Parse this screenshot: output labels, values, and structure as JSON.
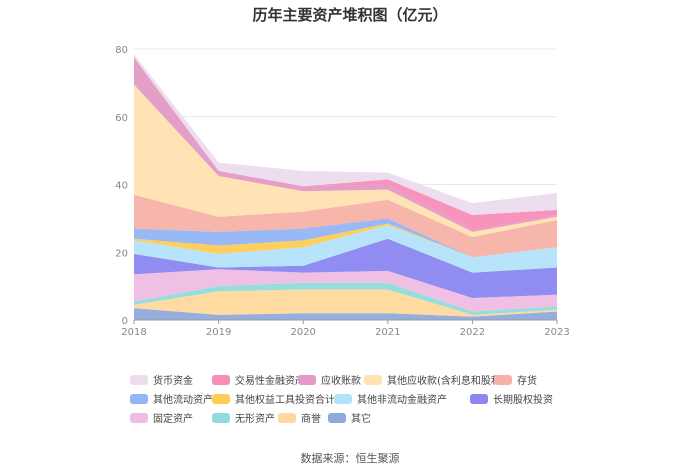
{
  "chart_data": {
    "type": "area",
    "stacked": true,
    "title": "历年主要资产堆积图（亿元）",
    "source": "数据来源：恒生聚源",
    "categories": [
      "2018",
      "2019",
      "2020",
      "2021",
      "2022",
      "2023"
    ],
    "ylim": [
      0,
      80
    ],
    "yticks": [
      0,
      20,
      40,
      60,
      80
    ],
    "grid": true,
    "series": [
      {
        "name": "其它",
        "color": "#8faadc",
        "values": [
          3.5,
          1.5,
          2.0,
          2.0,
          1.0,
          2.5
        ]
      },
      {
        "name": "商誉",
        "color": "#ffd89c",
        "values": [
          1.0,
          7.0,
          7.0,
          7.0,
          0.5,
          0.5
        ]
      },
      {
        "name": "无形资产",
        "color": "#8fdcdb",
        "values": [
          1.0,
          1.5,
          2.0,
          2.0,
          1.0,
          1.0
        ]
      },
      {
        "name": "固定资产",
        "color": "#eebde3",
        "values": [
          8.0,
          5.0,
          3.0,
          3.5,
          4.0,
          3.5
        ]
      },
      {
        "name": "长期股权投资",
        "color": "#8b86f0",
        "values": [
          6.0,
          0.5,
          2.0,
          9.5,
          7.5,
          8.0
        ]
      },
      {
        "name": "其他非流动金融资产",
        "color": "#b3e3fb",
        "values": [
          4.0,
          4.0,
          5.5,
          4.0,
          4.5,
          6.0
        ]
      },
      {
        "name": "其他权益工具投资合计",
        "color": "#ffcc55",
        "values": [
          0.5,
          2.5,
          2.0,
          0.5,
          0.0,
          0.0
        ]
      },
      {
        "name": "其他流动资产",
        "color": "#93b4f5",
        "values": [
          3.0,
          4.0,
          3.5,
          1.5,
          0.0,
          0.0
        ]
      },
      {
        "name": "存货",
        "color": "#f7b2a8",
        "values": [
          10.0,
          4.5,
          5.0,
          5.5,
          6.0,
          8.0
        ]
      },
      {
        "name": "其他应收款(含利息和股利)",
        "color": "#ffe2b0",
        "values": [
          32.5,
          12.0,
          6.0,
          3.0,
          1.5,
          1.0
        ]
      },
      {
        "name": "应收账款",
        "color": "#e39ac6",
        "values": [
          8.0,
          1.5,
          1.5,
          1.5,
          0.5,
          0.5
        ]
      },
      {
        "name": "交易性金融资产",
        "color": "#f88db8",
        "values": [
          0.0,
          0.0,
          0.0,
          1.5,
          4.5,
          1.5
        ]
      },
      {
        "name": "货币资金",
        "color": "#ecdcee",
        "values": [
          1.0,
          2.5,
          4.5,
          2.0,
          3.5,
          5.0
        ]
      }
    ],
    "legend_rows": [
      [
        "货币资金",
        "交易性金融资产",
        "应收账款",
        "其他应收款(含利息和股利)",
        "存货"
      ],
      [
        "其他流动资产",
        "其他权益工具投资合计",
        "其他非流动金融资产",
        "长期股权投资"
      ],
      [
        "固定资产",
        "无形资产",
        "商誉",
        "其它"
      ]
    ]
  }
}
